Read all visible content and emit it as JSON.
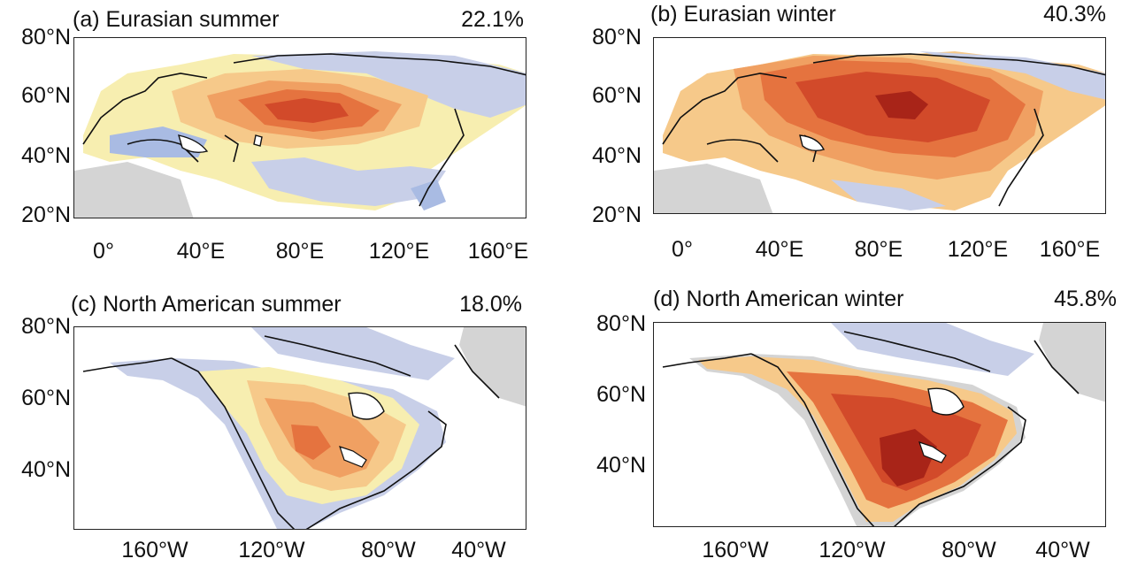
{
  "panels": [
    {
      "title": "(a) Eurasian summer",
      "percent": "22.1%",
      "y_labels": [
        "80°N",
        "60°N",
        "40°N",
        "20°N"
      ],
      "x_labels": [
        "0°",
        "40°E",
        "80°E",
        "120°E",
        "160°E"
      ]
    },
    {
      "title": "(b) Eurasian winter",
      "percent": "40.3%",
      "y_labels": [
        "80°N",
        "60°N",
        "40°N",
        "20°N"
      ],
      "x_labels": [
        "0°",
        "40°E",
        "80°E",
        "120°E",
        "160°E"
      ]
    },
    {
      "title": "(c) North American summer",
      "percent": "18.0%",
      "y_labels": [
        "80°N",
        "60°N",
        "40°N"
      ],
      "x_labels": [
        "160°W",
        "120°W",
        "80°W",
        "40°W"
      ]
    },
    {
      "title": "(d) North American winter",
      "percent": "45.8%",
      "y_labels": [
        "80°N",
        "60°N",
        "40°N"
      ],
      "x_labels": [
        "160°W",
        "120°W",
        "80°W",
        "40°W"
      ]
    }
  ],
  "colors": {
    "ocean": "#ffffff",
    "land_missing": "#d4d4d4",
    "neg_light": "#c8cfe8",
    "neg_mid": "#a9bbe3",
    "weak_pos": "#f7eeb0",
    "pos_1": "#f6c98a",
    "pos_2": "#f0a062",
    "pos_3": "#e5733f",
    "pos_4": "#d24a2a",
    "pos_5": "#a82418"
  }
}
